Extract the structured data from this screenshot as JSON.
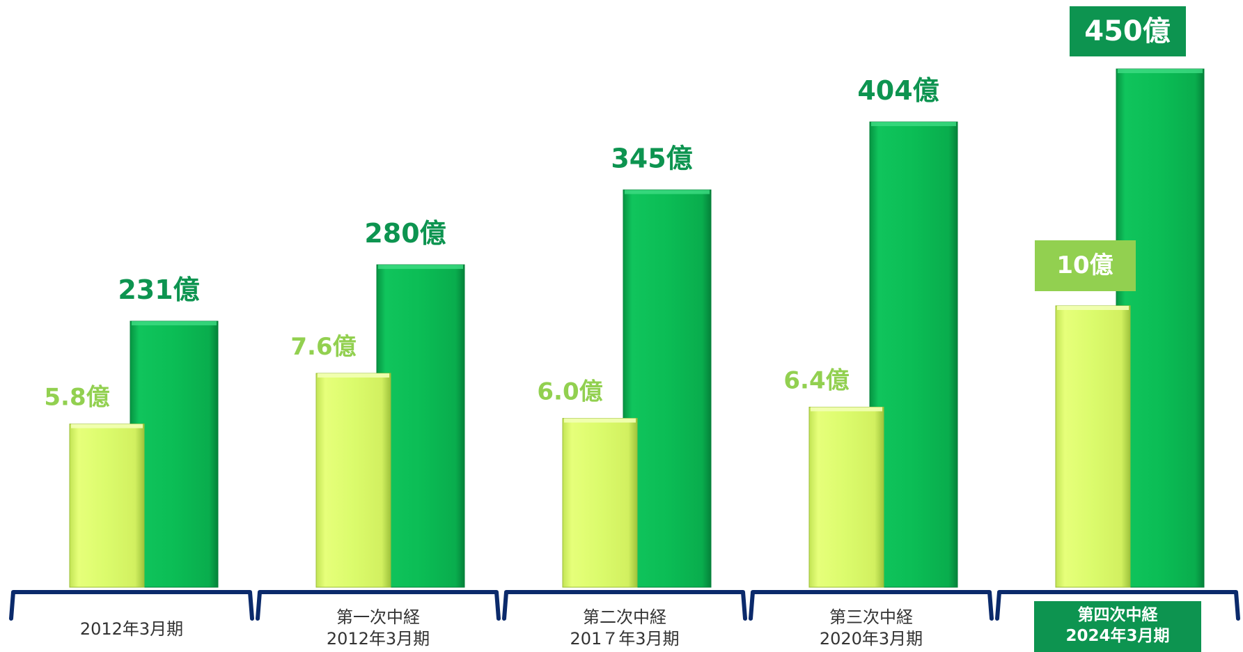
{
  "chart_data": {
    "type": "bar",
    "title": "",
    "xlabel": "",
    "ylabel": "",
    "categories": [
      [
        "2012年3月期"
      ],
      [
        "第一次中経",
        "2012年3月期"
      ],
      [
        "第二次中経",
        "201７年3月期"
      ],
      [
        "第三次中経",
        "2020年3月期"
      ],
      [
        "第四次中経",
        "2024年3月期"
      ]
    ],
    "highlighted_category": 4,
    "series": [
      {
        "color": "#dcfa70",
        "values": [
          5.8,
          7.6,
          6.0,
          6.4,
          10
        ],
        "labels": [
          "5.8億",
          "7.6億",
          "6.0億",
          "6.4億",
          "10億"
        ]
      },
      {
        "color": "#0cb352",
        "values": [
          231,
          280,
          345,
          404,
          450
        ],
        "labels": [
          "231億",
          "280億",
          "345億",
          "404億",
          "450億"
        ]
      }
    ],
    "colors": {
      "light_label": "#92d050",
      "dark_label": "#0d9450",
      "bracket": "#0b2a6b",
      "highlight_bg": "#0d9450"
    }
  }
}
